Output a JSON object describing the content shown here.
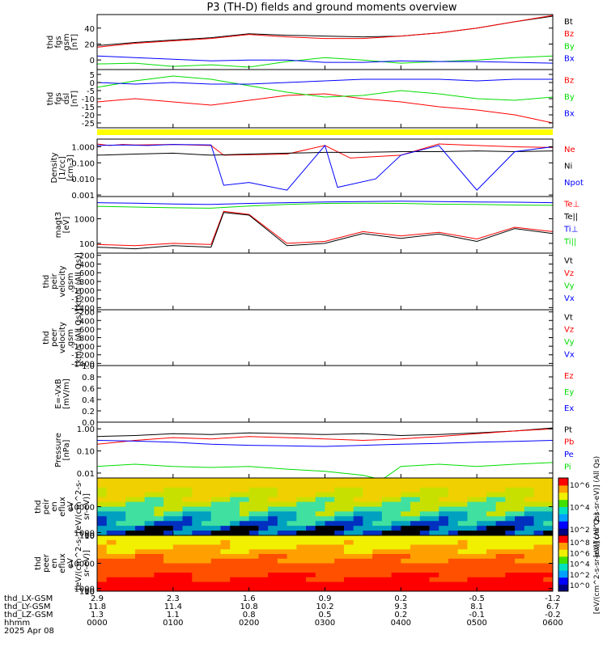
{
  "title": "P3 (TH-D) fields and ground moments overview",
  "colors": {
    "black": "#000000",
    "red": "#ff0000",
    "green": "#00dd00",
    "blue": "#0000ff",
    "yellow": "#ffff00",
    "white": "#ffffff"
  },
  "chart_data": [
    {
      "type": "line",
      "id": "fgs_gsm",
      "ylabel": [
        "thd",
        "fgs",
        "gsm",
        "[nT]"
      ],
      "yticks": [
        0,
        20,
        40
      ],
      "ylim": [
        -12,
        57
      ],
      "series": [
        {
          "name": "Bt",
          "color": "black",
          "x": [
            0,
            30,
            60,
            90,
            120,
            150,
            180,
            210,
            240,
            270,
            300,
            330,
            360
          ],
          "y": [
            18,
            22,
            25,
            28,
            33,
            31,
            30,
            29,
            30,
            34,
            40,
            48,
            55
          ]
        },
        {
          "name": "Bz",
          "color": "red",
          "x": [
            0,
            30,
            60,
            90,
            120,
            150,
            180,
            210,
            240,
            270,
            300,
            330,
            360
          ],
          "y": [
            16,
            21,
            24,
            27,
            32,
            29,
            27,
            27,
            30,
            34,
            40,
            48,
            56
          ]
        },
        {
          "name": "By",
          "color": "green",
          "x": [
            0,
            30,
            60,
            90,
            120,
            150,
            180,
            210,
            240,
            270,
            300,
            330,
            360
          ],
          "y": [
            -5,
            -4,
            -8,
            -6,
            -9,
            -2,
            3,
            0,
            -4,
            -2,
            0,
            3,
            5
          ]
        },
        {
          "name": "Bx",
          "color": "blue",
          "x": [
            0,
            30,
            60,
            90,
            120,
            150,
            180,
            210,
            240,
            270,
            300,
            330,
            360
          ],
          "y": [
            5,
            3,
            1,
            -1,
            0,
            0,
            -3,
            -3,
            -1,
            -2,
            -2,
            -3,
            -4
          ]
        }
      ]
    },
    {
      "type": "line",
      "id": "fgs_dsl",
      "ylabel": [
        "thd",
        "fgs",
        "dsl",
        "[nT]"
      ],
      "yticks": [
        -25,
        -20,
        -15,
        -10,
        -5,
        0,
        5
      ],
      "ylim": [
        -28,
        8
      ],
      "series": [
        {
          "name": "Bz",
          "color": "red",
          "x": [
            0,
            30,
            60,
            90,
            120,
            150,
            180,
            210,
            240,
            270,
            300,
            330,
            360
          ],
          "y": [
            -12,
            -10,
            -12,
            -14,
            -11,
            -8,
            -7,
            -10,
            -12,
            -15,
            -17,
            -20,
            -25
          ]
        },
        {
          "name": "By",
          "color": "green",
          "x": [
            0,
            30,
            60,
            90,
            120,
            150,
            180,
            210,
            240,
            270,
            300,
            330,
            360
          ],
          "y": [
            -3,
            1,
            4,
            2,
            -2,
            -6,
            -9,
            -8,
            -5,
            -7,
            -10,
            -11,
            -9
          ]
        },
        {
          "name": "Bx",
          "color": "blue",
          "x": [
            0,
            30,
            60,
            90,
            120,
            150,
            180,
            210,
            240,
            270,
            300,
            330,
            360
          ],
          "y": [
            0,
            -1,
            0,
            -1,
            -1,
            0,
            1,
            2,
            2,
            2,
            1,
            2,
            2
          ]
        }
      ]
    },
    {
      "type": "line",
      "id": "density",
      "ylabel": [
        "Density",
        "[1/cc]",
        "[cm-3]"
      ],
      "ylog": true,
      "yticks": [
        "0.001",
        "0.010",
        "0.100",
        "1.000"
      ],
      "ylim": [
        0.0008,
        3
      ],
      "series": [
        {
          "name": "Ne",
          "color": "red",
          "x": [
            0,
            10,
            20,
            30,
            60,
            90,
            100,
            150,
            180,
            200,
            240,
            270,
            300,
            330,
            360
          ],
          "y": [
            1.5,
            1.2,
            1.4,
            1.3,
            1.4,
            1.2,
            0.3,
            0.35,
            1.2,
            0.2,
            0.3,
            1.5,
            1.2,
            1.0,
            0.9
          ]
        },
        {
          "name": "Ni",
          "color": "black",
          "x": [
            0,
            30,
            60,
            90,
            120,
            150,
            180,
            210,
            240,
            270,
            300,
            330,
            360
          ],
          "y": [
            0.3,
            0.35,
            0.4,
            0.3,
            0.35,
            0.4,
            0.45,
            0.45,
            0.5,
            0.5,
            0.55,
            0.5,
            0.55
          ]
        },
        {
          "name": "Npot",
          "color": "blue",
          "x": [
            0,
            20,
            40,
            60,
            90,
            100,
            120,
            150,
            180,
            190,
            220,
            240,
            270,
            300,
            330,
            360
          ],
          "y": [
            1.2,
            1.3,
            1.2,
            1.4,
            1.3,
            0.004,
            0.006,
            0.002,
            1.2,
            0.003,
            0.01,
            0.3,
            1.2,
            0.002,
            0.5,
            1.0
          ]
        }
      ]
    },
    {
      "type": "line",
      "id": "temperature",
      "ylabel": [
        "magt3",
        "[eV]"
      ],
      "ylog": true,
      "yticks": [
        "100",
        "1000"
      ],
      "ylim": [
        40,
        8000
      ],
      "series": [
        {
          "name": "Te⊥",
          "color": "red",
          "x": [
            0,
            30,
            60,
            90,
            100,
            120,
            150,
            180,
            210,
            240,
            270,
            300,
            330,
            360
          ],
          "y": [
            90,
            80,
            100,
            90,
            2000,
            1500,
            100,
            120,
            300,
            200,
            280,
            150,
            450,
            300
          ]
        },
        {
          "name": "Te||",
          "color": "black",
          "x": [
            0,
            30,
            60,
            90,
            100,
            120,
            150,
            180,
            210,
            240,
            270,
            300,
            330,
            360
          ],
          "y": [
            70,
            60,
            80,
            70,
            1800,
            1400,
            80,
            100,
            250,
            160,
            240,
            120,
            400,
            250
          ]
        },
        {
          "name": "Ti⊥",
          "color": "blue",
          "x": [
            0,
            30,
            60,
            90,
            120,
            150,
            180,
            210,
            240,
            270,
            300,
            330,
            360
          ],
          "y": [
            4500,
            4300,
            4000,
            3800,
            4200,
            4500,
            4800,
            5000,
            5200,
            5000,
            4800,
            4700,
            4500
          ]
        },
        {
          "name": "Ti||",
          "color": "green",
          "x": [
            0,
            30,
            60,
            90,
            120,
            150,
            180,
            210,
            240,
            270,
            300,
            330,
            360
          ],
          "y": [
            3200,
            3000,
            2800,
            2700,
            3300,
            3800,
            4200,
            4300,
            4200,
            3900,
            3800,
            3600,
            3500
          ]
        }
      ]
    },
    {
      "type": "line",
      "id": "peir_velocity",
      "ylabel": [
        "thd",
        "peir",
        "velocity",
        "gsm",
        "[km/s (All Qs)]"
      ],
      "yticks": [
        -1400,
        -1200,
        -1000,
        -800,
        -600,
        -400,
        -200
      ],
      "ylim": [
        -1450,
        -150
      ],
      "legend": [
        "Vt",
        "Vz",
        "Vy",
        "Vx"
      ],
      "series": []
    },
    {
      "type": "line",
      "id": "peer_velocity",
      "ylabel": [
        "thd",
        "peer",
        "velocity",
        "gsm",
        "[km/s (All Qs)]"
      ],
      "yticks": [
        -1400,
        -1200,
        -1000,
        -800,
        -600,
        -400,
        -200
      ],
      "ylim": [
        -1450,
        -150
      ],
      "legend": [
        "Vt",
        "Vz",
        "Vy",
        "Vx"
      ],
      "series": []
    },
    {
      "type": "line",
      "id": "efield",
      "ylabel": [
        "E=-VxB",
        "[mV/m]"
      ],
      "yticks": [
        "0.0",
        "0.2",
        "0.4",
        "0.6",
        "0.8",
        "1.0"
      ],
      "ylim": [
        0,
        1
      ],
      "legend": [
        "Ez",
        "Ey",
        "Ex"
      ],
      "series": []
    },
    {
      "type": "line",
      "id": "pressure",
      "ylabel": [
        "Pressure",
        "[nPa]"
      ],
      "ylog": true,
      "yticks": [
        "0.01",
        "0.10",
        "1.00"
      ],
      "ylim": [
        0.006,
        2
      ],
      "series": [
        {
          "name": "Pt",
          "color": "black",
          "x": [
            0,
            30,
            60,
            90,
            120,
            150,
            180,
            210,
            240,
            270,
            300,
            330,
            360
          ],
          "y": [
            0.45,
            0.5,
            0.6,
            0.55,
            0.65,
            0.6,
            0.55,
            0.6,
            0.5,
            0.55,
            0.65,
            0.8,
            1.1
          ]
        },
        {
          "name": "Pb",
          "color": "red",
          "x": [
            0,
            30,
            60,
            90,
            120,
            150,
            180,
            210,
            240,
            270,
            300,
            330,
            360
          ],
          "y": [
            0.2,
            0.3,
            0.4,
            0.35,
            0.45,
            0.4,
            0.35,
            0.3,
            0.35,
            0.45,
            0.6,
            0.8,
            1.0
          ]
        },
        {
          "name": "Pe",
          "color": "blue",
          "x": [
            0,
            30,
            60,
            90,
            120,
            150,
            180,
            210,
            240,
            270,
            300,
            330,
            360
          ],
          "y": [
            0.3,
            0.28,
            0.25,
            0.2,
            0.18,
            0.17,
            0.16,
            0.18,
            0.2,
            0.22,
            0.25,
            0.27,
            0.3
          ]
        },
        {
          "name": "Pi",
          "color": "green",
          "x": [
            0,
            30,
            60,
            90,
            120,
            150,
            180,
            210,
            225,
            240,
            270,
            300,
            330,
            360
          ],
          "y": [
            0.02,
            0.025,
            0.02,
            0.018,
            0.02,
            0.015,
            0.012,
            0.008,
            0.005,
            0.02,
            0.025,
            0.02,
            0.025,
            0.03
          ]
        }
      ]
    },
    {
      "type": "heatmap",
      "id": "peir_eflux",
      "ylabel": [
        "thd",
        "peir",
        "en",
        "eflux",
        "eV",
        "[eV/(cm^2-s-",
        "sr-eV)]"
      ],
      "yticks": [
        "10",
        "100",
        "1000",
        "10000"
      ],
      "ylim": [
        7,
        20000
      ]
    },
    {
      "type": "heatmap",
      "id": "peer_eflux",
      "ylabel": [
        "thd",
        "peer",
        "en",
        "eflux",
        "eV",
        "[eV/(cm^2-s-",
        "sr-eV)]"
      ],
      "yticks": [
        "10",
        "100",
        "1000",
        "10000"
      ],
      "ylim": [
        7,
        20000
      ]
    }
  ],
  "colorbars": [
    {
      "ticks": [
        "10^6",
        "10^4",
        "10^2"
      ],
      "label": "[eV/(cm^2-s-sr-eV)] (All Qs)"
    },
    {
      "ticks": [
        "10^8",
        "10^6",
        "10^4",
        "10^2",
        "10^0"
      ],
      "label": "[eV/(cm^2-s-sr-eV)] (All Qs)"
    }
  ],
  "axis": {
    "rows": [
      {
        "label": "thd_LX-GSM",
        "values": [
          "2.9",
          "2.3",
          "1.6",
          "0.9",
          "0.2",
          "-0.5",
          "-1.2"
        ]
      },
      {
        "label": "thd_LY-GSM",
        "values": [
          "11.8",
          "11.4",
          "10.8",
          "10.2",
          "9.3",
          "8.1",
          "6.7"
        ]
      },
      {
        "label": "thd_LZ-GSM",
        "values": [
          "1.3",
          "1.1",
          "0.8",
          "0.5",
          "0.2",
          "-0.1",
          "-0.2"
        ]
      },
      {
        "label": "hhmm",
        "values": [
          "0000",
          "0100",
          "0200",
          "0300",
          "0400",
          "0500",
          "0600"
        ]
      }
    ],
    "date": "2025 Apr 08"
  }
}
